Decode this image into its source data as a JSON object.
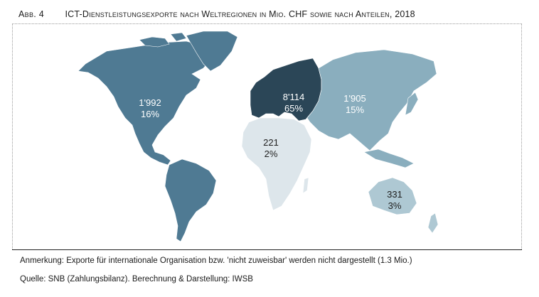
{
  "figure": {
    "label": "Abb. 4",
    "title": "ICT-Dienstleistungsexporte nach Weltregionen in Mio. CHF sowie nach Anteilen, 2018"
  },
  "regions": {
    "north_america": {
      "value": "1'992",
      "share": "16%",
      "color": "#4f7a93"
    },
    "south_america": {
      "color": "#4f7a93"
    },
    "europe": {
      "value": "8'114",
      "share": "65%",
      "color": "#2b4657"
    },
    "asia": {
      "value": "1'905",
      "share": "15%",
      "color": "#8aaebe"
    },
    "africa": {
      "value": "221",
      "share": "2%",
      "color": "#dde6eb"
    },
    "oceania": {
      "value": "331",
      "share": "3%",
      "color": "#aec8d3"
    }
  },
  "notes": {
    "remark": "Anmerkung: Exporte für internationale Organisation bzw. 'nicht zuweisbar' werden nicht dargestellt (1.3 Mio.)",
    "source": "Quelle: SNB (Zahlungsbilanz). Berechnung & Darstellung: IWSB"
  }
}
